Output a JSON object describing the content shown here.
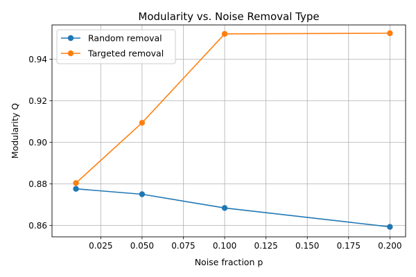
{
  "chart_data": {
    "type": "line",
    "title": "Modularity vs. Noise Removal Type",
    "xlabel": "Noise fraction p",
    "ylabel": "Modularity Q",
    "xlim": [
      -0.0045,
      0.2095
    ],
    "ylim": [
      0.8545,
      0.9565
    ],
    "xticks": [
      0.025,
      0.05,
      0.075,
      0.1,
      0.125,
      0.15,
      0.175,
      0.2
    ],
    "xtick_labels": [
      "0.025",
      "0.050",
      "0.075",
      "0.100",
      "0.125",
      "0.150",
      "0.175",
      "0.200"
    ],
    "yticks": [
      0.86,
      0.88,
      0.9,
      0.92,
      0.94
    ],
    "ytick_labels": [
      "0.86",
      "0.88",
      "0.90",
      "0.92",
      "0.94"
    ],
    "grid": true,
    "legend_position": "top-left",
    "x": [
      0.01,
      0.05,
      0.1,
      0.2
    ],
    "series": [
      {
        "name": "Random removal",
        "color": "#1f77b4",
        "values": [
          0.8776,
          0.875,
          0.8684,
          0.8593
        ]
      },
      {
        "name": "Targeted removal",
        "color": "#ff7f0e",
        "values": [
          0.8804,
          0.9094,
          0.9522,
          0.9525
        ]
      }
    ]
  }
}
